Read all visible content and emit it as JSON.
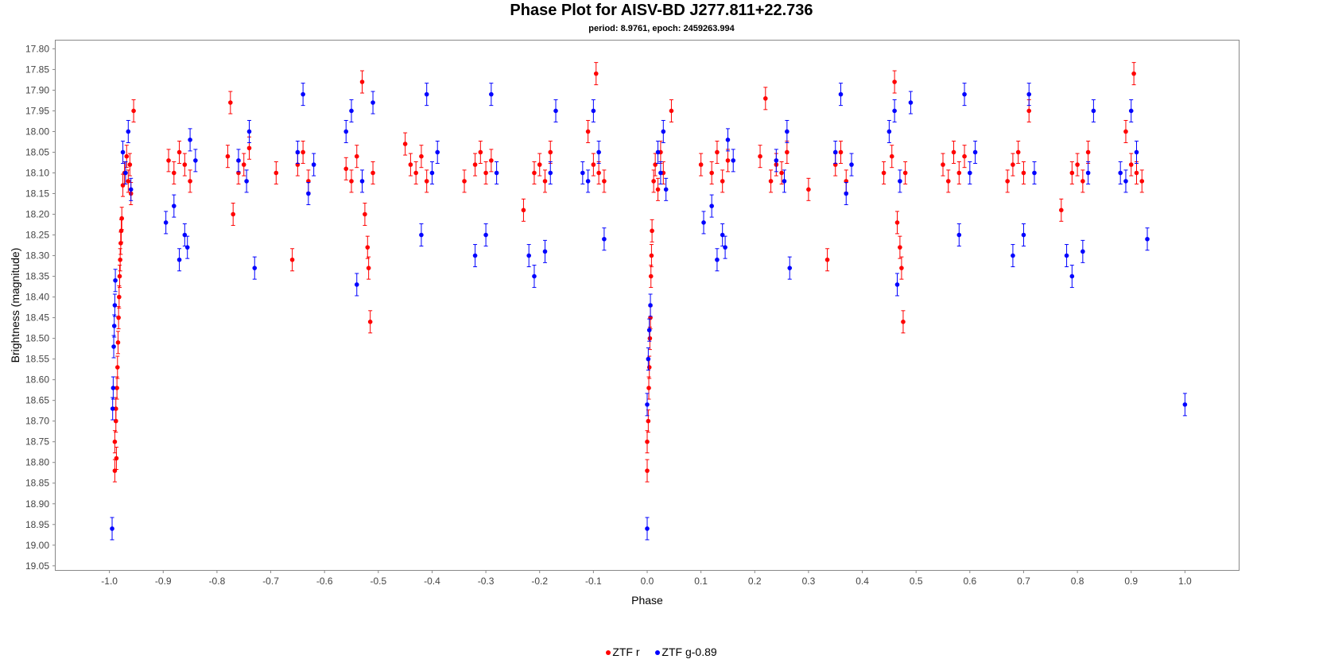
{
  "chart_data": {
    "type": "scatter",
    "title": "Phase Plot for AISV-BD J277.811+22.736",
    "subtitle": "period: 8.9761, epoch: 2459263.994",
    "xlabel": "Phase",
    "ylabel": "Brightness (magnitude)",
    "xlim": [
      -1.1,
      1.1
    ],
    "ylim": [
      17.78,
      19.06
    ],
    "y_inverted": true,
    "x_ticks": [
      "-1.0",
      "-0.9",
      "-0.8",
      "-0.7",
      "-0.6",
      "-0.5",
      "-0.4",
      "-0.3",
      "-0.2",
      "-0.1",
      "0.0",
      "0.1",
      "0.2",
      "0.3",
      "0.4",
      "0.5",
      "0.6",
      "0.7",
      "0.8",
      "0.9",
      "1.0"
    ],
    "y_ticks": [
      "17.80",
      "17.85",
      "17.90",
      "17.95",
      "18.00",
      "18.05",
      "18.10",
      "18.15",
      "18.20",
      "18.25",
      "18.30",
      "18.35",
      "18.40",
      "18.45",
      "18.50",
      "18.55",
      "18.60",
      "18.65",
      "18.70",
      "18.75",
      "18.80",
      "18.85",
      "18.90",
      "18.95",
      "19.00",
      "19.05"
    ],
    "grid": false,
    "legend_position": "bottom-center",
    "series": [
      {
        "name": "ZTF r",
        "color": "#ff0000",
        "points": [
          [
            -0.99,
            18.82
          ],
          [
            -0.99,
            18.75
          ],
          [
            -0.988,
            18.7
          ],
          [
            -0.988,
            18.67
          ],
          [
            -0.987,
            18.79
          ],
          [
            -0.986,
            18.62
          ],
          [
            -0.985,
            18.57
          ],
          [
            -0.984,
            18.51
          ],
          [
            -0.983,
            18.45
          ],
          [
            -0.982,
            18.4
          ],
          [
            -0.981,
            18.35
          ],
          [
            -0.98,
            18.31
          ],
          [
            -0.979,
            18.27
          ],
          [
            -0.978,
            18.24
          ],
          [
            -0.977,
            18.21
          ],
          [
            -0.975,
            18.13
          ],
          [
            -0.972,
            18.1
          ],
          [
            -0.968,
            18.06
          ],
          [
            -0.965,
            18.12
          ],
          [
            -0.962,
            18.08
          ],
          [
            -0.96,
            18.15
          ],
          [
            -0.955,
            17.95
          ],
          [
            -0.89,
            18.07
          ],
          [
            -0.88,
            18.1
          ],
          [
            -0.87,
            18.05
          ],
          [
            -0.86,
            18.08
          ],
          [
            -0.85,
            18.12
          ],
          [
            -0.78,
            18.06
          ],
          [
            -0.775,
            17.93
          ],
          [
            -0.77,
            18.2
          ],
          [
            -0.76,
            18.1
          ],
          [
            -0.75,
            18.08
          ],
          [
            -0.74,
            18.04
          ],
          [
            -0.69,
            18.1
          ],
          [
            -0.66,
            18.31
          ],
          [
            -0.65,
            18.08
          ],
          [
            -0.64,
            18.05
          ],
          [
            -0.63,
            18.12
          ],
          [
            -0.56,
            18.09
          ],
          [
            -0.55,
            18.12
          ],
          [
            -0.54,
            18.06
          ],
          [
            -0.53,
            17.88
          ],
          [
            -0.525,
            18.2
          ],
          [
            -0.52,
            18.28
          ],
          [
            -0.518,
            18.33
          ],
          [
            -0.515,
            18.46
          ],
          [
            -0.51,
            18.1
          ],
          [
            -0.45,
            18.03
          ],
          [
            -0.44,
            18.08
          ],
          [
            -0.43,
            18.1
          ],
          [
            -0.42,
            18.06
          ],
          [
            -0.41,
            18.12
          ],
          [
            -0.34,
            18.12
          ],
          [
            -0.32,
            18.08
          ],
          [
            -0.31,
            18.05
          ],
          [
            -0.3,
            18.1
          ],
          [
            -0.29,
            18.07
          ],
          [
            -0.23,
            18.19
          ],
          [
            -0.21,
            18.1
          ],
          [
            -0.2,
            18.08
          ],
          [
            -0.19,
            18.12
          ],
          [
            -0.18,
            18.05
          ],
          [
            -0.11,
            18.0
          ],
          [
            -0.1,
            18.08
          ],
          [
            -0.09,
            18.1
          ],
          [
            -0.095,
            17.86
          ],
          [
            -0.08,
            18.12
          ],
          [
            0.0,
            18.82
          ],
          [
            0.0,
            18.75
          ],
          [
            0.002,
            18.7
          ],
          [
            0.003,
            18.62
          ],
          [
            0.004,
            18.57
          ],
          [
            0.005,
            18.5
          ],
          [
            0.006,
            18.45
          ],
          [
            0.007,
            18.35
          ],
          [
            0.008,
            18.3
          ],
          [
            0.009,
            18.24
          ],
          [
            0.012,
            18.12
          ],
          [
            0.015,
            18.08
          ],
          [
            0.02,
            18.14
          ],
          [
            0.025,
            18.05
          ],
          [
            0.03,
            18.1
          ],
          [
            0.045,
            17.95
          ],
          [
            0.1,
            18.08
          ],
          [
            0.12,
            18.1
          ],
          [
            0.13,
            18.05
          ],
          [
            0.14,
            18.12
          ],
          [
            0.15,
            18.07
          ],
          [
            0.21,
            18.06
          ],
          [
            0.22,
            17.92
          ],
          [
            0.23,
            18.12
          ],
          [
            0.24,
            18.08
          ],
          [
            0.25,
            18.1
          ],
          [
            0.26,
            18.05
          ],
          [
            0.3,
            18.14
          ],
          [
            0.335,
            18.31
          ],
          [
            0.35,
            18.08
          ],
          [
            0.36,
            18.05
          ],
          [
            0.37,
            18.12
          ],
          [
            0.44,
            18.1
          ],
          [
            0.455,
            18.06
          ],
          [
            0.46,
            17.88
          ],
          [
            0.465,
            18.22
          ],
          [
            0.47,
            18.28
          ],
          [
            0.473,
            18.33
          ],
          [
            0.476,
            18.46
          ],
          [
            0.48,
            18.1
          ],
          [
            0.55,
            18.08
          ],
          [
            0.56,
            18.12
          ],
          [
            0.57,
            18.05
          ],
          [
            0.58,
            18.1
          ],
          [
            0.59,
            18.06
          ],
          [
            0.67,
            18.12
          ],
          [
            0.68,
            18.08
          ],
          [
            0.69,
            18.05
          ],
          [
            0.7,
            18.1
          ],
          [
            0.71,
            17.95
          ],
          [
            0.77,
            18.19
          ],
          [
            0.79,
            18.1
          ],
          [
            0.8,
            18.08
          ],
          [
            0.81,
            18.12
          ],
          [
            0.82,
            18.05
          ],
          [
            0.89,
            18.0
          ],
          [
            0.9,
            18.08
          ],
          [
            0.905,
            17.86
          ],
          [
            0.91,
            18.1
          ],
          [
            0.92,
            18.12
          ]
        ]
      },
      {
        "name": "ZTF g-0.89",
        "color": "#0000ff",
        "points": [
          [
            -0.995,
            18.96
          ],
          [
            -0.994,
            18.67
          ],
          [
            -0.993,
            18.62
          ],
          [
            -0.992,
            18.52
          ],
          [
            -0.991,
            18.47
          ],
          [
            -0.99,
            18.42
          ],
          [
            -0.989,
            18.36
          ],
          [
            -0.975,
            18.05
          ],
          [
            -0.97,
            18.1
          ],
          [
            -0.965,
            18.0
          ],
          [
            -0.96,
            18.14
          ],
          [
            -0.895,
            18.22
          ],
          [
            -0.88,
            18.18
          ],
          [
            -0.87,
            18.31
          ],
          [
            -0.86,
            18.25
          ],
          [
            -0.855,
            18.28
          ],
          [
            -0.85,
            18.02
          ],
          [
            -0.84,
            18.07
          ],
          [
            -0.76,
            18.07
          ],
          [
            -0.745,
            18.12
          ],
          [
            -0.74,
            18.0
          ],
          [
            -0.73,
            18.33
          ],
          [
            -0.65,
            18.05
          ],
          [
            -0.64,
            17.91
          ],
          [
            -0.63,
            18.15
          ],
          [
            -0.62,
            18.08
          ],
          [
            -0.56,
            18.0
          ],
          [
            -0.55,
            17.95
          ],
          [
            -0.54,
            18.37
          ],
          [
            -0.53,
            18.12
          ],
          [
            -0.51,
            17.93
          ],
          [
            -0.42,
            18.25
          ],
          [
            -0.41,
            17.91
          ],
          [
            -0.4,
            18.1
          ],
          [
            -0.39,
            18.05
          ],
          [
            -0.32,
            18.3
          ],
          [
            -0.3,
            18.25
          ],
          [
            -0.29,
            17.91
          ],
          [
            -0.28,
            18.1
          ],
          [
            -0.22,
            18.3
          ],
          [
            -0.21,
            18.35
          ],
          [
            -0.19,
            18.29
          ],
          [
            -0.18,
            18.1
          ],
          [
            -0.17,
            17.95
          ],
          [
            -0.12,
            18.1
          ],
          [
            -0.11,
            18.12
          ],
          [
            -0.1,
            17.95
          ],
          [
            -0.09,
            18.05
          ],
          [
            -0.08,
            18.26
          ],
          [
            0.0,
            18.96
          ],
          [
            0.0,
            18.66
          ],
          [
            0.002,
            18.55
          ],
          [
            0.004,
            18.48
          ],
          [
            0.006,
            18.42
          ],
          [
            0.02,
            18.05
          ],
          [
            0.025,
            18.1
          ],
          [
            0.03,
            18.0
          ],
          [
            0.035,
            18.14
          ],
          [
            0.105,
            18.22
          ],
          [
            0.12,
            18.18
          ],
          [
            0.13,
            18.31
          ],
          [
            0.14,
            18.25
          ],
          [
            0.145,
            18.28
          ],
          [
            0.15,
            18.02
          ],
          [
            0.16,
            18.07
          ],
          [
            0.24,
            18.07
          ],
          [
            0.255,
            18.12
          ],
          [
            0.26,
            18.0
          ],
          [
            0.265,
            18.33
          ],
          [
            0.35,
            18.05
          ],
          [
            0.36,
            17.91
          ],
          [
            0.37,
            18.15
          ],
          [
            0.38,
            18.08
          ],
          [
            0.45,
            18.0
          ],
          [
            0.46,
            17.95
          ],
          [
            0.465,
            18.37
          ],
          [
            0.47,
            18.12
          ],
          [
            0.49,
            17.93
          ],
          [
            0.58,
            18.25
          ],
          [
            0.59,
            17.91
          ],
          [
            0.6,
            18.1
          ],
          [
            0.61,
            18.05
          ],
          [
            0.68,
            18.3
          ],
          [
            0.7,
            18.25
          ],
          [
            0.71,
            17.91
          ],
          [
            0.72,
            18.1
          ],
          [
            0.78,
            18.3
          ],
          [
            0.79,
            18.35
          ],
          [
            0.81,
            18.29
          ],
          [
            0.82,
            18.1
          ],
          [
            0.83,
            17.95
          ],
          [
            0.88,
            18.1
          ],
          [
            0.89,
            18.12
          ],
          [
            0.9,
            17.95
          ],
          [
            0.91,
            18.05
          ],
          [
            0.93,
            18.26
          ],
          [
            1.0,
            18.66
          ]
        ]
      }
    ]
  }
}
